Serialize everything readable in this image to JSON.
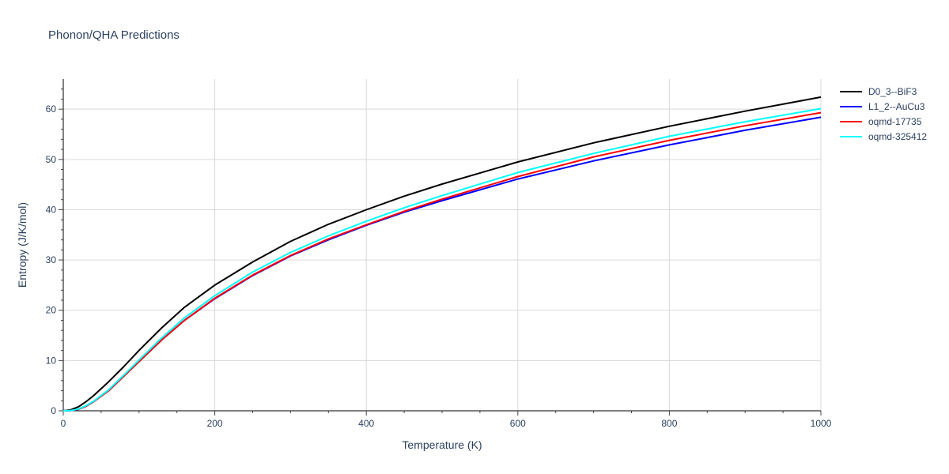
{
  "chart_data": {
    "type": "line",
    "title": "Phonon/QHA Predictions",
    "xlabel": "Temperature (K)",
    "ylabel": "Entropy (J/K/mol)",
    "xlim": [
      0,
      1000
    ],
    "ylim": [
      0,
      66
    ],
    "xticks": [
      0,
      200,
      400,
      600,
      800,
      1000
    ],
    "yticks": [
      0,
      10,
      20,
      30,
      40,
      50,
      60
    ],
    "grid": true,
    "legend_position": "top-right",
    "x": [
      0,
      10,
      20,
      30,
      40,
      60,
      80,
      100,
      130,
      160,
      200,
      250,
      300,
      350,
      400,
      450,
      500,
      600,
      700,
      800,
      900,
      1000
    ],
    "series": [
      {
        "name": "D0_3--BiF3",
        "color": "#000000",
        "values": [
          0,
          0.2,
          0.8,
          1.8,
          3.0,
          5.8,
          8.8,
          12.0,
          16.5,
          20.6,
          25.0,
          29.6,
          33.7,
          37.1,
          40.0,
          42.7,
          45.1,
          49.5,
          53.3,
          56.6,
          59.6,
          62.4
        ]
      },
      {
        "name": "L1_2--AuCu3",
        "color": "#0000ff",
        "values": [
          0,
          0.05,
          0.3,
          0.9,
          1.8,
          4.0,
          6.9,
          9.8,
          14.1,
          18.0,
          22.3,
          26.9,
          30.8,
          34.0,
          36.9,
          39.5,
          41.8,
          46.1,
          49.7,
          52.9,
          55.8,
          58.4
        ]
      },
      {
        "name": "oqmd-17735",
        "color": "#ff0000",
        "values": [
          0,
          0.05,
          0.3,
          0.9,
          1.8,
          4.0,
          6.9,
          9.8,
          14.1,
          18.0,
          22.4,
          27.0,
          30.9,
          34.2,
          37.0,
          39.7,
          42.1,
          46.6,
          50.5,
          53.8,
          56.7,
          59.3
        ]
      },
      {
        "name": "oqmd-325412",
        "color": "#00ffff",
        "values": [
          0,
          0.06,
          0.35,
          1.0,
          1.9,
          4.2,
          7.1,
          10.1,
          14.5,
          18.5,
          22.9,
          27.6,
          31.5,
          34.8,
          37.7,
          40.4,
          42.8,
          47.4,
          51.2,
          54.6,
          57.5,
          60.1
        ]
      }
    ]
  }
}
